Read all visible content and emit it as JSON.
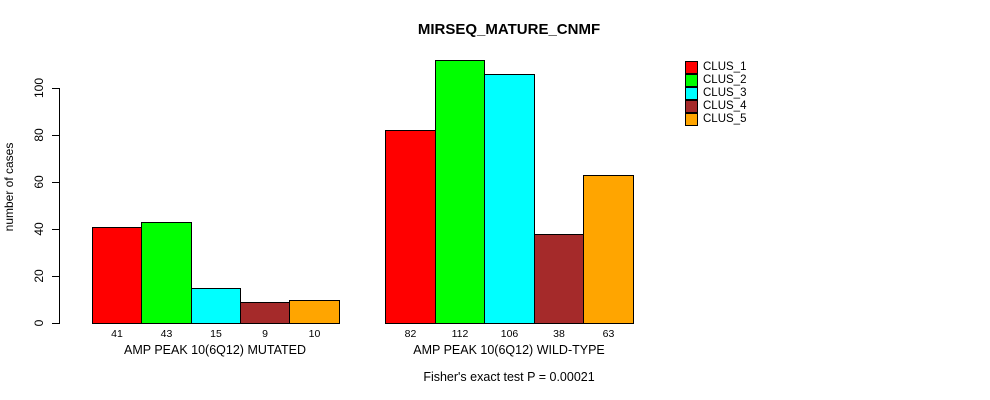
{
  "chart_data": {
    "type": "bar",
    "title": "MIRSEQ_MATURE_CNMF",
    "ylabel": "number of cases",
    "yticks": [
      0,
      20,
      40,
      60,
      80,
      100
    ],
    "ylim": [
      0,
      100
    ],
    "grid": false,
    "legend_position": "right",
    "categories": [
      "AMP PEAK 10(6Q12) MUTATED",
      "AMP PEAK 10(6Q12) WILD-TYPE"
    ],
    "series": [
      {
        "name": "CLUS_1",
        "color": "#ff0000",
        "values": [
          41,
          82
        ]
      },
      {
        "name": "CLUS_2",
        "color": "#00ff00",
        "values": [
          43,
          112
        ]
      },
      {
        "name": "CLUS_3",
        "color": "#00ffff",
        "values": [
          15,
          106
        ]
      },
      {
        "name": "CLUS_4",
        "color": "#a52a2a",
        "values": [
          9,
          38
        ]
      },
      {
        "name": "CLUS_5",
        "color": "#ffa500",
        "values": [
          10,
          63
        ]
      }
    ],
    "bar_value_labels": {
      "AMP PEAK 10(6Q12) MUTATED": [
        41,
        43,
        15,
        9,
        10
      ],
      "AMP PEAK 10(6Q12) WILD-TYPE": [
        82,
        112,
        106,
        38,
        63
      ]
    },
    "footnote": "Fisher's exact test P = 0.00021"
  }
}
